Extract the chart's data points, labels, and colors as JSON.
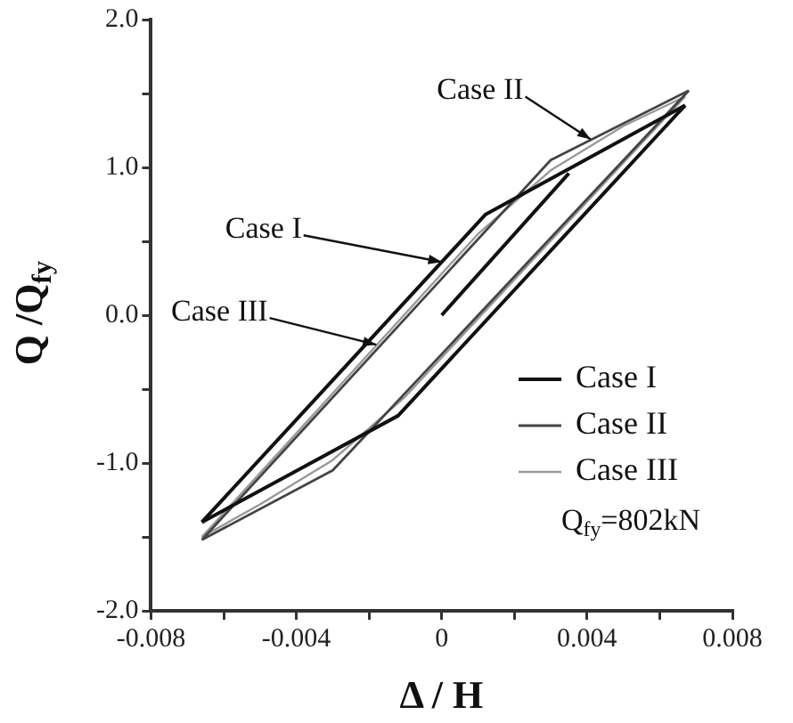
{
  "chart_data": {
    "type": "line",
    "xlabel": "Δ / H",
    "ylabel": "Q /Q$_{fy}$",
    "xlim": [
      -0.008,
      0.008
    ],
    "xticks": [
      -0.008,
      {
        "value": -0.006,
        "label": null
      },
      -0.004,
      {
        "value": -0.002,
        "label": null
      },
      0,
      {
        "value": 0.002,
        "label": null
      },
      0.004,
      {
        "value": 0.006,
        "label": null
      },
      0.008
    ],
    "ylim": [
      -2,
      2
    ],
    "yticks": [
      {
        "value": -2,
        "label": "-2.0"
      },
      {
        "value": -1.5,
        "label": null
      },
      {
        "value": -1,
        "label": "-1.0"
      },
      {
        "value": -0.5,
        "label": null
      },
      {
        "value": 0,
        "label": "0.0"
      },
      {
        "value": 0.5,
        "label": null
      },
      {
        "value": 1,
        "label": "1.0"
      },
      {
        "value": 1.5,
        "label": null
      },
      {
        "value": 2,
        "label": "2.0"
      }
    ],
    "series": [
      {
        "name": "Case I",
        "color": "#111111",
        "x": [
          -0.0066,
          0.0012,
          0.0067
        ],
        "values": [
          -1.4,
          0.68,
          1.42
        ]
      },
      {
        "color": "#111111",
        "x": [
          -0.0066,
          -0.0012,
          0.0067
        ],
        "values": [
          -1.4,
          -0.68,
          1.42
        ]
      },
      {
        "color": "#111111",
        "x": [
          0,
          0.0035
        ],
        "values": [
          0,
          0.96
        ]
      },
      {
        "name": "Case II",
        "color": "#444444",
        "x": [
          -0.0066,
          0.003,
          0.0068
        ],
        "values": [
          -1.52,
          1.05,
          1.52
        ]
      },
      {
        "color": "#444444",
        "x": [
          -0.0066,
          -0.003,
          0.0068
        ],
        "values": [
          -1.52,
          -1.05,
          1.52
        ]
      },
      {
        "name": "Case III",
        "color": "#999999",
        "x": [
          -0.0066,
          0.001,
          0.003,
          0.005,
          0.0067
        ],
        "values": [
          -1.5,
          0.55,
          0.98,
          1.28,
          1.48
        ]
      },
      {
        "color": "#999999",
        "x": [
          -0.0066,
          -0.005,
          -0.003,
          -0.001,
          0.0067
        ],
        "values": [
          -1.5,
          -1.28,
          -0.98,
          -0.55,
          1.48
        ]
      }
    ],
    "annotations": [
      {
        "text": "Case II",
        "x": 0.0041,
        "y": 1.19
      },
      {
        "text": "Case I",
        "x": 0,
        "y": 0.36
      },
      {
        "text": "Case III",
        "x": -0.0018,
        "y": -0.2
      },
      "Q$_{fy}$=802kN"
    ],
    "legend": "bottom right",
    "grid": false,
    "marker": "none",
    "line_style": "solid"
  }
}
